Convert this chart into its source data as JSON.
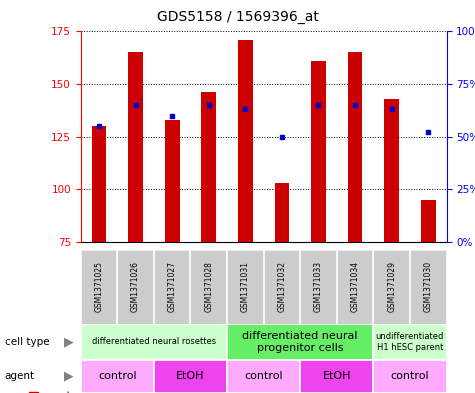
{
  "title": "GDS5158 / 1569396_at",
  "samples": [
    "GSM1371025",
    "GSM1371026",
    "GSM1371027",
    "GSM1371028",
    "GSM1371031",
    "GSM1371032",
    "GSM1371033",
    "GSM1371034",
    "GSM1371029",
    "GSM1371030"
  ],
  "counts": [
    130,
    165,
    133,
    146,
    171,
    103,
    161,
    165,
    143,
    95
  ],
  "percentile_ranks": [
    55,
    65,
    60,
    65,
    63,
    50,
    65,
    65,
    63,
    52
  ],
  "ylim_left": [
    75,
    175
  ],
  "ylim_right": [
    0,
    100
  ],
  "yticks_left": [
    75,
    100,
    125,
    150,
    175
  ],
  "yticks_right": [
    0,
    25,
    50,
    75,
    100
  ],
  "ytick_labels_right": [
    "0%",
    "25%",
    "50%",
    "75%",
    "100%"
  ],
  "bar_color": "#cc0000",
  "dot_color": "#0000cc",
  "cell_type_groups": [
    {
      "label": "differentiated neural rosettes",
      "start": 0,
      "end": 4,
      "color": "#ccffcc",
      "fontsize": 6
    },
    {
      "label": "differentiated neural\nprogenitor cells",
      "start": 4,
      "end": 8,
      "color": "#66ee66",
      "fontsize": 8
    },
    {
      "label": "undifferentiated\nH1 hESC parent",
      "start": 8,
      "end": 10,
      "color": "#ccffcc",
      "fontsize": 6
    }
  ],
  "agent_groups": [
    {
      "label": "control",
      "start": 0,
      "end": 2,
      "color": "#ffaaff",
      "fontsize": 8
    },
    {
      "label": "EtOH",
      "start": 2,
      "end": 4,
      "color": "#ee44ee",
      "fontsize": 8
    },
    {
      "label": "control",
      "start": 4,
      "end": 6,
      "color": "#ffaaff",
      "fontsize": 8
    },
    {
      "label": "EtOH",
      "start": 6,
      "end": 8,
      "color": "#ee44ee",
      "fontsize": 8
    },
    {
      "label": "control",
      "start": 8,
      "end": 10,
      "color": "#ffaaff",
      "fontsize": 8
    }
  ],
  "sample_bg_color": "#cccccc",
  "bg_color": "#ffffff",
  "bar_width": 0.4
}
